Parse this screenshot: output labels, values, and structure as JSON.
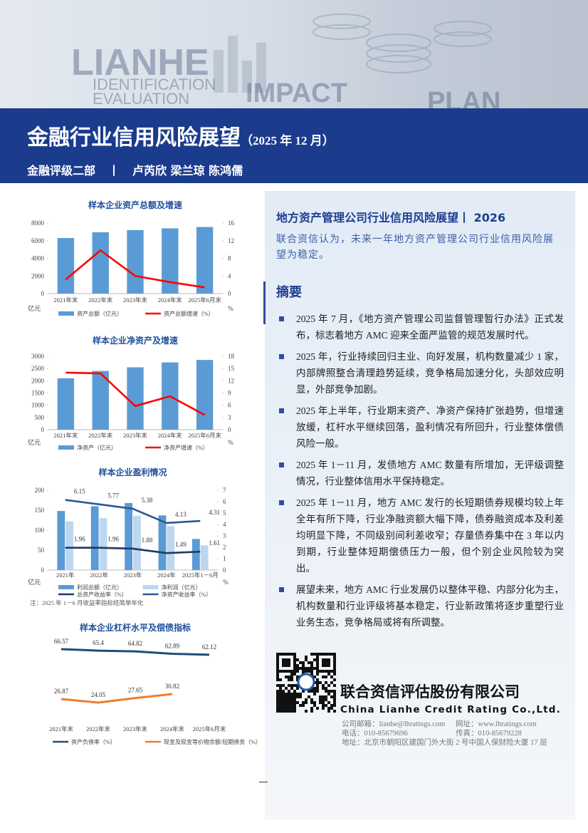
{
  "header": {
    "background_words": [
      "LIANHE",
      "IDENTIFICATION",
      "EVALUATION",
      "IMPACT",
      "PLAN"
    ],
    "title": "金融行业信用风险展望",
    "date": "（2025 年 12 月）",
    "department": "金融评级二部",
    "separator": "丨",
    "authors": "卢芮欣 梁兰琼 陈鸿儒"
  },
  "chart_data": [
    {
      "type": "bar_line",
      "title": "样本企业资产总额及增速",
      "categories": [
        "2021年末",
        "2022年末",
        "2023年末",
        "2024年末",
        "2025年6月末"
      ],
      "series": [
        {
          "name": "资产总额（亿元）",
          "type": "bar",
          "color": "#5b9bd5",
          "values": [
            6300,
            6950,
            7200,
            7400,
            7550
          ]
        },
        {
          "name": "资产总额增速（%）",
          "type": "line",
          "axis": "y2",
          "color": "#ff0000",
          "values": [
            3.2,
            9.8,
            4.0,
            2.6,
            1.4
          ]
        }
      ],
      "ylim": [
        0,
        8000
      ],
      "yticks": [
        0,
        2000,
        4000,
        6000,
        8000
      ],
      "y2lim": [
        0,
        16
      ],
      "y2ticks": [
        0,
        4,
        8,
        12,
        16
      ],
      "y_unit": "亿元",
      "y2_unit": "%"
    },
    {
      "type": "bar_line",
      "title": "样本企业净资产及增速",
      "categories": [
        "2021年末",
        "2022年末",
        "2023年末",
        "2024年末",
        "2025年6月末"
      ],
      "series": [
        {
          "name": "净资产（亿元）",
          "type": "bar",
          "color": "#5b9bd5",
          "values": [
            2100,
            2400,
            2550,
            2750,
            2850
          ]
        },
        {
          "name": "净资产增速（%）",
          "type": "line",
          "axis": "y2",
          "color": "#ff0000",
          "values": [
            14.0,
            13.8,
            5.8,
            8.2,
            3.6
          ]
        }
      ],
      "ylim": [
        0,
        3000
      ],
      "yticks": [
        0,
        500,
        1000,
        1500,
        2000,
        2500,
        3000
      ],
      "y2lim": [
        0,
        18
      ],
      "y2ticks": [
        0,
        3,
        6,
        9,
        12,
        15,
        18
      ],
      "y_unit": "亿元",
      "y2_unit": "%"
    },
    {
      "type": "bar_line",
      "title": "样本企业盈利情况",
      "categories": [
        "2021年",
        "2022年",
        "2023年",
        "2024年",
        "2025年1－6月"
      ],
      "series": [
        {
          "name": "利润总额（亿元）",
          "type": "bar",
          "color": "#5b9bd5",
          "values": [
            148,
            160,
            168,
            137,
            78
          ]
        },
        {
          "name": "净利润（亿元）",
          "type": "bar",
          "color": "#bdd7ee",
          "values": [
            122,
            130,
            136,
            110,
            62
          ]
        },
        {
          "name": "总资产收益率（%）",
          "type": "line",
          "axis": "y2",
          "color": "#1f3864",
          "labels": true,
          "values": [
            1.96,
            1.96,
            1.88,
            1.49,
            1.61
          ]
        },
        {
          "name": "净资产收益率（%）",
          "type": "line",
          "axis": "y2",
          "color": "#2f5597",
          "labels": true,
          "values": [
            6.15,
            5.77,
            5.38,
            4.13,
            4.31
          ]
        }
      ],
      "ylim": [
        0,
        200
      ],
      "yticks": [
        0,
        50,
        100,
        150,
        200
      ],
      "y2lim": [
        0,
        7
      ],
      "y2ticks": [
        0,
        1,
        2,
        3,
        4,
        5,
        6,
        7
      ],
      "y_unit": "亿元",
      "y2_unit": "%",
      "note": "注：2025 年 1－6 月收益率指标经简单年化"
    },
    {
      "type": "line",
      "title": "样本企业杠杆水平及偿债指标",
      "categories": [
        "2021年末",
        "2022年末",
        "2023年末",
        "2024年末",
        "2025年6月末"
      ],
      "series": [
        {
          "name": "资产负债率（%）",
          "type": "line",
          "color": "#1f4e79",
          "labels": true,
          "values": [
            66.57,
            65.4,
            64.82,
            62.89,
            62.12
          ]
        },
        {
          "name": "现金及现金等价物余额/短期债务（%）",
          "type": "line",
          "color": "#ed7d31",
          "labels": true,
          "values": [
            26.87,
            24.05,
            27.65,
            30.82,
            null
          ]
        }
      ]
    }
  ],
  "panel": {
    "title": "地方资产管理公司行业信用风险展望丨 2026",
    "lead": "联合资信认为，未来一年地方资产管理公司行业信用风险展望为稳定。",
    "summary_heading": "摘要",
    "bullets": [
      "2025 年 7 月，《地方资产管理公司监督管理暂行办法》正式发布，标志着地方 AMC 迎来全面严监管的规范发展时代。",
      "2025 年，行业持续回归主业、向好发展，机构数量减少 1 家，内部牌照整合清理趋势延续，竞争格局加速分化，头部效应明显，外部竞争加剧。",
      "2025 年上半年，行业期末资产、净资产保持扩张趋势，但增速放缓，杠杆水平继续回落，盈利情况有所回升，行业整体偿债风险一般。",
      "2025 年 1－11 月，发债地方 AMC 数量有所增加，无评级调整情况，行业整体信用水平保持稳定。",
      "2025 年 1－11 月，地方 AMC 发行的长短期债券规模均较上年全年有所下降，行业净融资额大幅下降，债券融资成本及利差均明显下降，不同级别间利差收窄；存量债券集中在 3 年以内到期，行业整体短期偿债压力一般，但个别企业风险较为突出。",
      "展望未来，地方 AMC 行业发展仍以整体平稳、内部分化为主，机构数量和行业评级将基本稳定，行业新政策将逐步重塑行业业务生态，竞争格局或将有所调整。"
    ]
  },
  "company": {
    "name": "联合资信评估股份有限公司",
    "english": "China Lianhe Credit Rating Co.,Ltd.",
    "email": "公司邮箱：lianhe@lhratings.com",
    "website": "网址：www.lhratings.com",
    "phone": "电话：010-85679696",
    "fax": "传真：010-85679228",
    "address": "地址：北京市朝阳区建国门外大街 2 号中国人保财险大厦 17 层"
  }
}
